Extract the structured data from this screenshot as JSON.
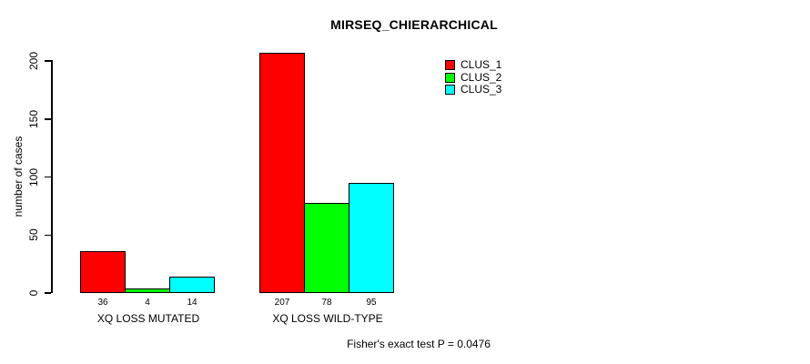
{
  "chart_data": {
    "type": "bar",
    "title": "MIRSEQ_CHIERARCHICAL",
    "ylabel": "number of cases",
    "xlabel": "",
    "categories": [
      "XQ LOSS MUTATED",
      "XQ LOSS WILD-TYPE"
    ],
    "series": [
      {
        "name": "CLUS_1",
        "color": "#ff0000",
        "values": [
          36,
          207
        ]
      },
      {
        "name": "CLUS_2",
        "color": "#00ff00",
        "values": [
          4,
          78
        ]
      },
      {
        "name": "CLUS_3",
        "color": "#00ffff",
        "values": [
          14,
          95
        ]
      }
    ],
    "bar_value_labels": [
      [
        "36",
        "4",
        "14"
      ],
      [
        "207",
        "78",
        "95"
      ]
    ],
    "y_ticks": [
      0,
      50,
      100,
      150,
      200
    ],
    "ylim": [
      0,
      200
    ],
    "grid": false,
    "legend_position": "top-right",
    "legend_entries": [
      "CLUS_1",
      "CLUS_2",
      "CLUS_3"
    ]
  },
  "footnote": "Fisher's exact test P = 0.0476",
  "colors": {
    "bar_border": "#000000",
    "background": "#ffffff",
    "text": "#000000"
  }
}
